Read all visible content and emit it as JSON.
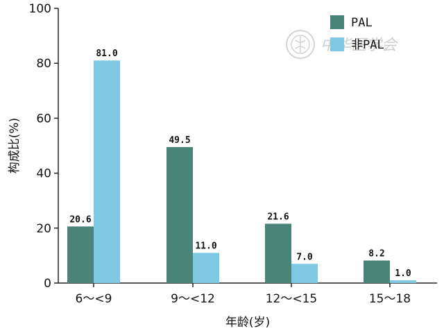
{
  "chart_data": {
    "type": "bar",
    "categories": [
      "6～<9",
      "9～<12",
      "12～<15",
      "15～18"
    ],
    "series": [
      {
        "name": "PAL",
        "color": "#4a8479",
        "values": [
          20.6,
          49.5,
          21.6,
          8.2
        ]
      },
      {
        "name": "非PAL",
        "color": "#7ec8e3",
        "values": [
          81.0,
          11.0,
          7.0,
          1.0
        ]
      }
    ],
    "value_labels": [
      [
        "20.6",
        "49.5",
        "21.6",
        "8.2"
      ],
      [
        "81.0",
        "11.0",
        "7.0",
        "1.0"
      ]
    ],
    "xlabel": "年龄(岁)",
    "ylabel": "构成比(%)",
    "ylim": [
      0,
      100
    ],
    "yticks": [
      0,
      20,
      40,
      60,
      80,
      100
    ],
    "grid": false,
    "legend_position": "top-right"
  },
  "watermark": {
    "text": "中华医学会"
  }
}
